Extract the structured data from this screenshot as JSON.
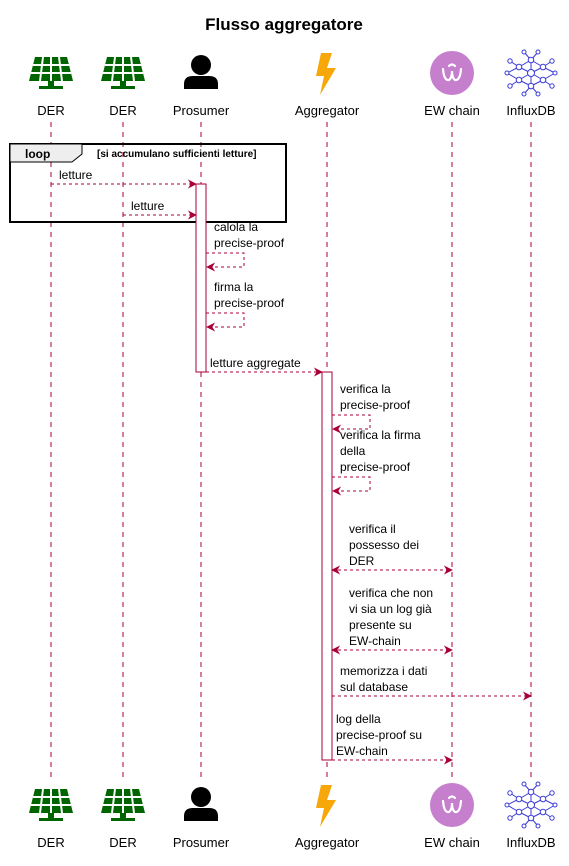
{
  "title": "Flusso aggregatore",
  "colors": {
    "line": "#a80036",
    "solar": "#006400",
    "person": "#000000",
    "bolt": "#f7a70a",
    "ewchain": "#c67fcd",
    "influx": "#3b3bd6"
  },
  "participants": [
    {
      "id": "der1",
      "label": "DER",
      "icon": "solar-panel-icon"
    },
    {
      "id": "der2",
      "label": "DER",
      "icon": "solar-panel-icon"
    },
    {
      "id": "prosumer",
      "label": "Prosumer",
      "icon": "person-icon"
    },
    {
      "id": "aggregator",
      "label": "Aggregator",
      "icon": "lightning-bolt-icon"
    },
    {
      "id": "ewchain",
      "label": "EW chain",
      "icon": "ew-chain-logo-icon"
    },
    {
      "id": "influxdb",
      "label": "InfluxDB",
      "icon": "influxdb-logo-icon"
    }
  ],
  "loop": {
    "keyword": "loop",
    "condition": "[si accumulano sufficienti letture]"
  },
  "messages": [
    {
      "from": "der1",
      "to": "prosumer",
      "lines": [
        "letture"
      ]
    },
    {
      "from": "der2",
      "to": "prosumer",
      "lines": [
        "letture"
      ]
    },
    {
      "from": "prosumer",
      "to": "prosumer",
      "lines": [
        "calola la",
        "precise-proof"
      ]
    },
    {
      "from": "prosumer",
      "to": "prosumer",
      "lines": [
        "firma la",
        "precise-proof"
      ]
    },
    {
      "from": "prosumer",
      "to": "aggregator",
      "lines": [
        "letture aggregate"
      ]
    },
    {
      "from": "aggregator",
      "to": "aggregator",
      "lines": [
        "verifica la",
        "precise-proof"
      ]
    },
    {
      "from": "aggregator",
      "to": "aggregator",
      "lines": [
        "verifica la firma",
        "della",
        "precise-proof"
      ]
    },
    {
      "from": "aggregator",
      "to": "ewchain",
      "bidirectional": true,
      "lines": [
        "verifica il",
        "possesso dei",
        "DER"
      ]
    },
    {
      "from": "aggregator",
      "to": "ewchain",
      "bidirectional": true,
      "lines": [
        "verifica che non",
        "vi sia un log già",
        "presente su",
        "EW-chain"
      ]
    },
    {
      "from": "aggregator",
      "to": "influxdb",
      "lines": [
        "memorizza i dati",
        "sul database"
      ]
    },
    {
      "from": "aggregator",
      "to": "ewchain",
      "lines": [
        "log della",
        "precise-proof su",
        "EW-chain"
      ]
    }
  ]
}
